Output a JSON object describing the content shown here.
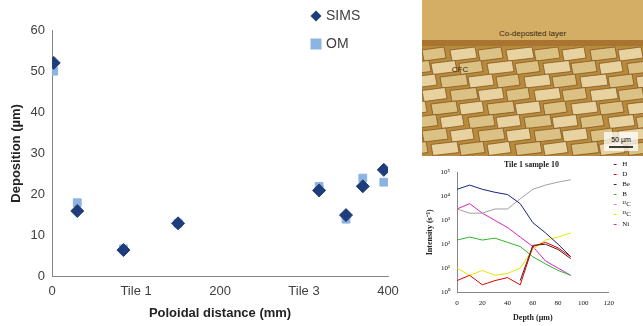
{
  "chart_data": [
    {
      "type": "scatter",
      "x_label": "Poloidal distance (mm)",
      "y_label": "Deposition (µm)",
      "x": [
        2,
        30,
        85,
        150,
        318,
        350,
        370,
        395
      ],
      "series": [
        {
          "name": "SIMS",
          "color": "#1f3d7a",
          "marker": "diamond",
          "values": [
            52,
            16,
            6.5,
            13,
            21,
            15,
            22,
            26
          ]
        },
        {
          "name": "OM",
          "color": "#8db3e2",
          "marker": "square",
          "values": [
            50,
            18,
            6.8,
            13,
            22,
            14,
            24,
            23
          ]
        }
      ],
      "xlim": [
        0,
        400
      ],
      "xticks": [
        0,
        {
          "value": 100,
          "label": "Tile 1"
        },
        200,
        {
          "value": 300,
          "label": "Tile 3"
        },
        400
      ],
      "ylim": [
        0,
        60
      ],
      "yticks": [
        0,
        10,
        20,
        30,
        40,
        50,
        60
      ],
      "grid": false,
      "legend": "upper right"
    },
    {
      "type": "line",
      "title": "Tile 1 sample 10",
      "x_label": "Depth (µm)",
      "y_label": "Intensity (s⁻¹)",
      "x": [
        0,
        10,
        20,
        30,
        40,
        50,
        60,
        70,
        80,
        90
      ],
      "series": [
        {
          "name": "H",
          "color": "#5a1a1a",
          "values": [
            null,
            null,
            null,
            null,
            null,
            3,
            90,
            100,
            60,
            25
          ]
        },
        {
          "name": "D",
          "color": "#e00000",
          "values": [
            3,
            5,
            2,
            3,
            4,
            2,
            80,
            120,
            70,
            30
          ]
        },
        {
          "name": "Be",
          "color": "#1a237e",
          "values": [
            20000,
            30000,
            20000,
            15000,
            12000,
            5000,
            800,
            300,
            100,
            30
          ]
        },
        {
          "name": "B",
          "color": "#2eb82e",
          "values": [
            150,
            200,
            150,
            180,
            120,
            80,
            30,
            15,
            8,
            5
          ]
        },
        {
          "name": "¹²C",
          "color": "#a0a0a0",
          "values": [
            3000,
            2000,
            2000,
            3000,
            3000,
            8000,
            20000,
            30000,
            40000,
            50000
          ]
        },
        {
          "name": "¹³C",
          "color": "#e6e600",
          "values": [
            10,
            5,
            8,
            5,
            6,
            10,
            60,
            150,
            200,
            300
          ]
        },
        {
          "name": "Ni",
          "color": "#e020c0",
          "values": [
            3000,
            5000,
            2000,
            1000,
            500,
            200,
            80,
            20,
            10,
            5
          ]
        }
      ],
      "xlim": [
        0,
        120
      ],
      "xticks": [
        0,
        20,
        40,
        60,
        80,
        100,
        120
      ],
      "ylim": [
        1,
        100000
      ],
      "yticks": [
        {
          "value": 1,
          "label": "10⁰"
        },
        {
          "value": 10,
          "label": "10¹"
        },
        {
          "value": 100,
          "label": "10²"
        },
        {
          "value": 1000,
          "label": "10³"
        },
        {
          "value": 10000,
          "label": "10⁴"
        },
        {
          "value": 100000,
          "label": "10⁵"
        }
      ],
      "log": "y",
      "grid": false,
      "legend": "right",
      "line_style": "solid"
    }
  ],
  "micrograph": {
    "layer_label": "Co-deposited layer",
    "substrate_label": "CFC",
    "scale_bar": "50 µm"
  }
}
